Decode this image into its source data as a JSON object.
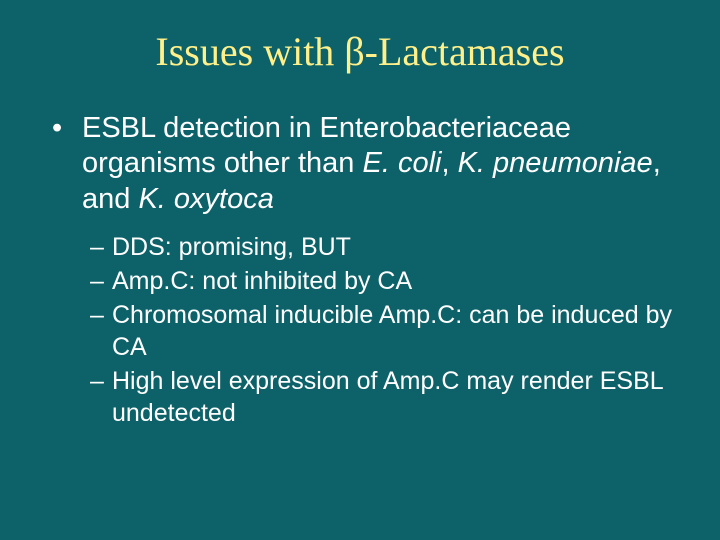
{
  "colors": {
    "background": "#0d6269",
    "title": "#fff08a",
    "body_text": "#ffffff"
  },
  "typography": {
    "title_fontsize_pt": 40,
    "title_font_family": "Times New Roman",
    "body_fontsize_pt": 29,
    "sub_fontsize_pt": 25,
    "body_font_family": "Arial"
  },
  "title": {
    "pre": "Issues with ",
    "beta": "β",
    "post": "-Lactamases"
  },
  "bullet1": {
    "line1": "ESBL detection in Enterobacteriaceae organisms other than ",
    "sp1": "E. coli",
    "sep1": ", ",
    "sp2": "K. pneumoniae",
    "sep2": ", and ",
    "sp3": "K. oxytoca"
  },
  "sub": {
    "s1": "DDS: promising, BUT",
    "s2": "Amp.C: not inhibited by CA",
    "s3": "Chromosomal inducible Amp.C: can be induced by CA",
    "s4": "High level expression of Amp.C may render ESBL undetected"
  }
}
